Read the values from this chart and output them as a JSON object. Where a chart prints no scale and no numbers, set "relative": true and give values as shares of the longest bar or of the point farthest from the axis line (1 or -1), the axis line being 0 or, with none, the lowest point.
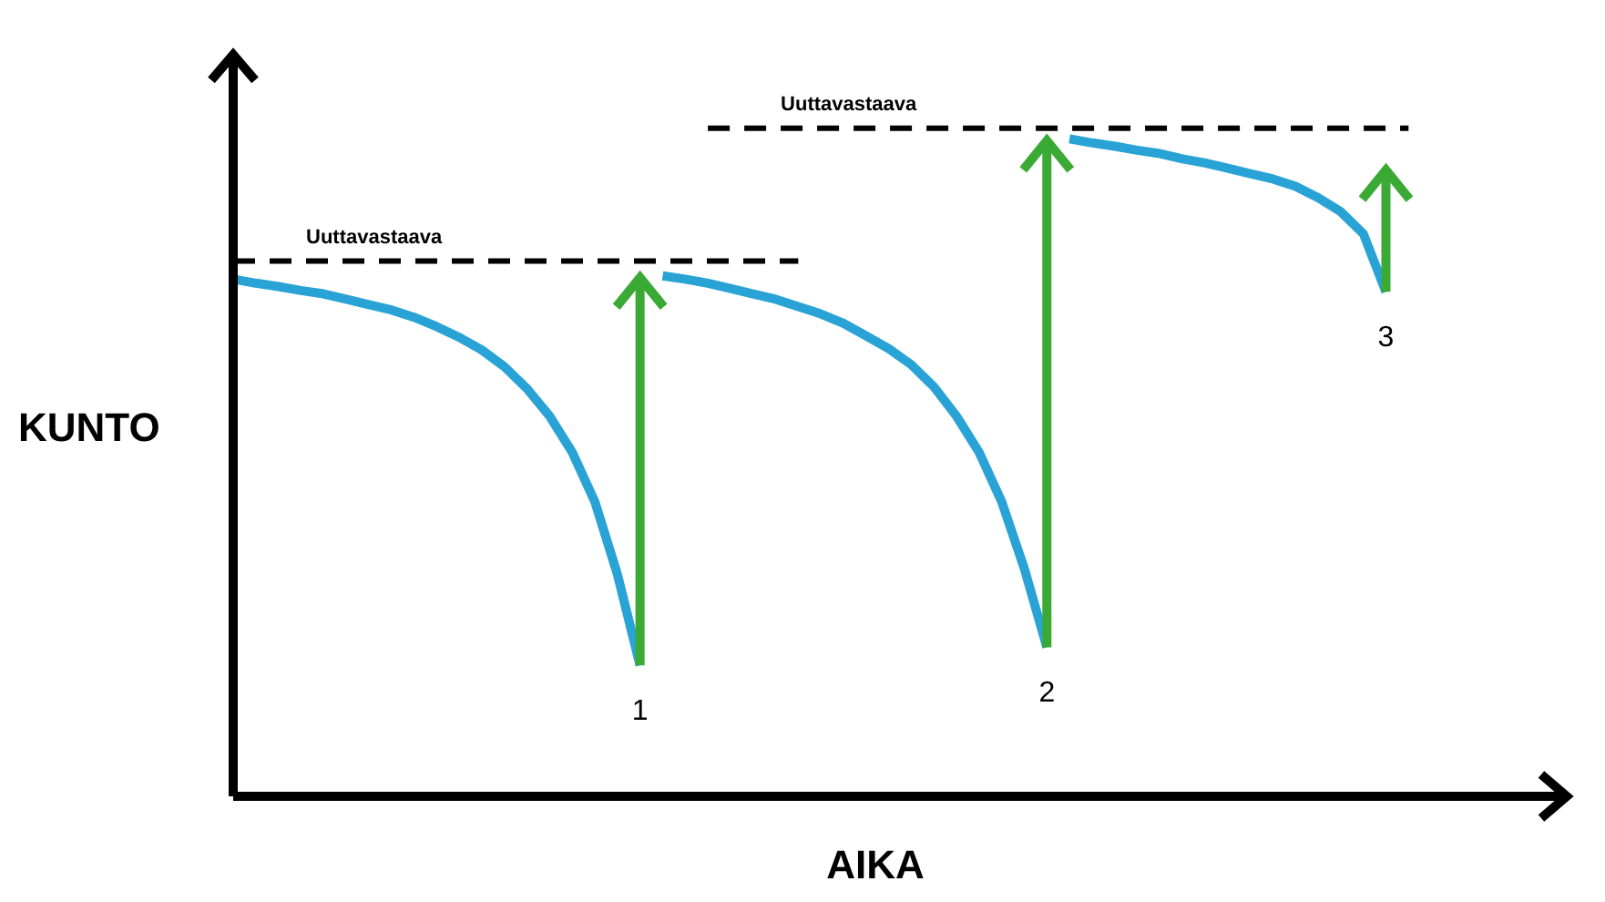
{
  "chart_data": {
    "type": "line",
    "relative": true,
    "xlabel": "AIKA",
    "ylabel": "KUNTO",
    "marker": "none",
    "line_style": "solid",
    "categories": [
      null,
      null,
      null,
      null,
      null,
      null,
      null,
      null,
      null,
      null,
      null,
      null,
      null,
      null,
      null,
      null,
      null,
      null,
      null,
      null,
      null,
      null,
      null,
      null,
      null,
      null,
      null,
      null,
      null,
      null,
      null,
      null,
      null,
      null,
      null,
      null,
      null,
      null,
      null,
      null,
      null,
      null,
      null,
      null,
      null,
      null,
      null,
      null,
      null,
      null,
      null,
      null,
      null,
      null,
      null,
      null,
      null,
      null,
      null,
      null
    ],
    "series": [
      {
        "color": "#29a3d6",
        "values": [
          0.774,
          0.768,
          0.763,
          0.757,
          0.752,
          0.744,
          0.736,
          0.728,
          0.717,
          0.703,
          0.687,
          0.668,
          0.643,
          0.61,
          0.569,
          0.515,
          0.441,
          0.332,
          0.196,
          null,
          null,
          null,
          null,
          null,
          null,
          null,
          null,
          null,
          null,
          null,
          null,
          null,
          null,
          null,
          null,
          null,
          null,
          null,
          null,
          null,
          null,
          null,
          null,
          null,
          null,
          null,
          null,
          null,
          null,
          null,
          null,
          null,
          null,
          null,
          null,
          null,
          null,
          null,
          null,
          null
        ]
      },
      {
        "color": "#29a3d6",
        "values": [
          null,
          null,
          null,
          null,
          null,
          null,
          null,
          null,
          null,
          null,
          null,
          null,
          null,
          null,
          null,
          null,
          null,
          null,
          null,
          0.779,
          0.774,
          0.768,
          0.76,
          0.752,
          0.744,
          0.733,
          0.722,
          0.708,
          0.689,
          0.67,
          0.646,
          0.613,
          0.569,
          0.515,
          0.441,
          0.341,
          0.223,
          null,
          null,
          null,
          null,
          null,
          null,
          null,
          null,
          null,
          null,
          null,
          null,
          null,
          null,
          null,
          null,
          null,
          null,
          null,
          null,
          null,
          null,
          null
        ]
      },
      {
        "color": "#29a3d6",
        "values": [
          null,
          null,
          null,
          null,
          null,
          null,
          null,
          null,
          null,
          null,
          null,
          null,
          null,
          null,
          null,
          null,
          null,
          null,
          null,
          null,
          null,
          null,
          null,
          null,
          null,
          null,
          null,
          null,
          null,
          null,
          null,
          null,
          null,
          null,
          null,
          null,
          null,
          0.984,
          0.978,
          0.973,
          0.967,
          0.962,
          0.954,
          0.948,
          0.94,
          0.932,
          0.924,
          0.913,
          0.896,
          0.875,
          0.842,
          0.755,
          null,
          null,
          null,
          null,
          null,
          null,
          null,
          null
        ]
      },
      {
        "name": "Uuttavastaava",
        "color": "#000000",
        "line_style": "dashed",
        "values": [
          0.801,
          0.801,
          0.801,
          0.801,
          0.801,
          0.801,
          0.801,
          0.801,
          0.801,
          0.801,
          0.801,
          0.801,
          0.801,
          0.801,
          0.801,
          0.801,
          0.801,
          0.801,
          0.801,
          0.801,
          0.801,
          0.801,
          0.801,
          0.801,
          0.801,
          0.801,
          null,
          null,
          null,
          null,
          null,
          null,
          null,
          null,
          null,
          null,
          null,
          null,
          null,
          null,
          null,
          null,
          null,
          null,
          null,
          null,
          null,
          null,
          null,
          null,
          null,
          null,
          null,
          null,
          null,
          null,
          null,
          null,
          null,
          null
        ]
      },
      {
        "name": "Uuttavastaava",
        "color": "#000000",
        "line_style": "dashed",
        "values": [
          null,
          null,
          null,
          null,
          null,
          null,
          null,
          null,
          null,
          null,
          null,
          null,
          null,
          null,
          null,
          null,
          null,
          null,
          null,
          null,
          null,
          1.0,
          1.0,
          1.0,
          1.0,
          1.0,
          1.0,
          1.0,
          1.0,
          1.0,
          1.0,
          1.0,
          1.0,
          1.0,
          1.0,
          1.0,
          1.0,
          1.0,
          1.0,
          1.0,
          1.0,
          1.0,
          1.0,
          1.0,
          1.0,
          1.0,
          1.0,
          1.0,
          1.0,
          1.0,
          1.0,
          1.0,
          1.0,
          null,
          null,
          null,
          null,
          null,
          null,
          null
        ]
      }
    ],
    "annotations": [
      "1",
      "2",
      "3"
    ]
  }
}
